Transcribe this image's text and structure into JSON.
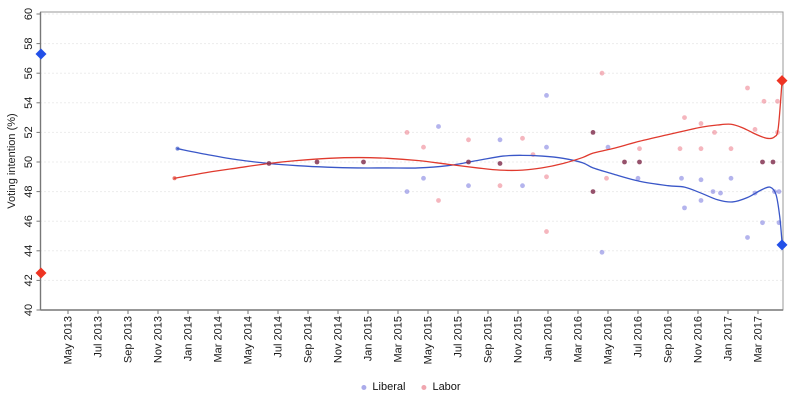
{
  "chart_data": {
    "type": "scatter",
    "title": "",
    "xlabel": "",
    "ylabel": "Voting intention (%)",
    "ylim": [
      40,
      60
    ],
    "y_ticks": [
      40,
      42,
      44,
      46,
      48,
      50,
      52,
      54,
      56,
      58,
      60
    ],
    "x_unit": "months since May 2013",
    "x_ticks": [
      {
        "m": 0,
        "label": "May 2013"
      },
      {
        "m": 2,
        "label": "Jul 2013"
      },
      {
        "m": 4,
        "label": "Sep 2013"
      },
      {
        "m": 6,
        "label": "Nov 2013"
      },
      {
        "m": 8,
        "label": "Jan 2014"
      },
      {
        "m": 10,
        "label": "Mar 2014"
      },
      {
        "m": 12,
        "label": "May 2014"
      },
      {
        "m": 14,
        "label": "Jul 2014"
      },
      {
        "m": 16,
        "label": "Sep 2014"
      },
      {
        "m": 18,
        "label": "Nov 2014"
      },
      {
        "m": 20,
        "label": "Jan 2015"
      },
      {
        "m": 22,
        "label": "Mar 2015"
      },
      {
        "m": 24,
        "label": "May 2015"
      },
      {
        "m": 26,
        "label": "Jul 2015"
      },
      {
        "m": 28,
        "label": "Sep 2015"
      },
      {
        "m": 30,
        "label": "Nov 2015"
      },
      {
        "m": 32,
        "label": "Jan 2016"
      },
      {
        "m": 34,
        "label": "Mar 2016"
      },
      {
        "m": 36,
        "label": "May 2016"
      },
      {
        "m": 38,
        "label": "Jul 2016"
      },
      {
        "m": 40,
        "label": "Sep 2016"
      },
      {
        "m": 42,
        "label": "Nov 2016"
      },
      {
        "m": 44,
        "label": "Jan 2017"
      },
      {
        "m": 46,
        "label": "Mar 2017"
      }
    ],
    "grid": "horizontal dotted gridlines at each y tick",
    "legend": {
      "position": "bottom-center",
      "entries": [
        {
          "label": "Liberal",
          "color": "rgba(88,88,214,0.5)"
        },
        {
          "label": "Labor",
          "color": "rgba(228,92,110,0.55)"
        }
      ]
    },
    "colors": {
      "liberal_point": "rgba(88,88,214,0.45)",
      "labor_point": "rgba(230,80,100,0.42)",
      "overlap_point": "rgba(132,52,82,0.85)",
      "liberal_line": "#3a57c8",
      "labor_line": "#e03a2e",
      "liberal_diamond": "#2250e8",
      "labor_diamond": "#ee3423",
      "grid": "#d9d9d9",
      "frame": "#9a9a9a",
      "axis": "#777777",
      "tick_text": "#1a1a1a"
    },
    "series": [
      {
        "name": "Liberal polls",
        "kind": "scatter",
        "points": [
          [
            22.6,
            48.0
          ],
          [
            23.7,
            48.9
          ],
          [
            24.7,
            52.4
          ],
          [
            26.7,
            48.4
          ],
          [
            28.8,
            51.5
          ],
          [
            30.3,
            48.4
          ],
          [
            31.9,
            51.0
          ],
          [
            31.9,
            54.5
          ],
          [
            35.6,
            43.9
          ],
          [
            36.0,
            51.0
          ],
          [
            38.0,
            48.9
          ],
          [
            40.9,
            48.9
          ],
          [
            41.1,
            46.9
          ],
          [
            42.2,
            48.8
          ],
          [
            42.2,
            47.4
          ],
          [
            43.0,
            48.0
          ],
          [
            43.5,
            47.9
          ],
          [
            44.2,
            48.9
          ],
          [
            45.3,
            44.9
          ],
          [
            45.8,
            47.9
          ],
          [
            46.3,
            45.9
          ],
          [
            47.1,
            48.0
          ],
          [
            47.4,
            48.0
          ],
          [
            47.4,
            45.9
          ]
        ]
      },
      {
        "name": "Labor polls",
        "kind": "scatter",
        "points": [
          [
            22.6,
            52.0
          ],
          [
            23.7,
            51.0
          ],
          [
            24.7,
            47.4
          ],
          [
            26.7,
            51.5
          ],
          [
            28.8,
            48.4
          ],
          [
            30.3,
            51.6
          ],
          [
            31.0,
            50.5
          ],
          [
            31.9,
            49.0
          ],
          [
            31.9,
            45.3
          ],
          [
            35.6,
            56.0
          ],
          [
            35.9,
            48.9
          ],
          [
            38.1,
            50.9
          ],
          [
            40.8,
            50.9
          ],
          [
            41.1,
            53.0
          ],
          [
            42.2,
            52.6
          ],
          [
            42.2,
            50.9
          ],
          [
            43.1,
            52.0
          ],
          [
            44.2,
            50.9
          ],
          [
            45.3,
            55.0
          ],
          [
            45.8,
            52.2
          ],
          [
            46.4,
            54.1
          ],
          [
            47.3,
            52.0
          ],
          [
            47.3,
            54.1
          ]
        ]
      },
      {
        "name": "Overlapping Liberal and Labor polls",
        "kind": "scatter-overlap",
        "points": [
          [
            13.4,
            49.9
          ],
          [
            16.6,
            50.0
          ],
          [
            19.7,
            50.0
          ],
          [
            26.7,
            50.0
          ],
          [
            28.8,
            49.9
          ],
          [
            35.0,
            52.0
          ],
          [
            35.0,
            48.0
          ],
          [
            37.1,
            50.0
          ],
          [
            38.1,
            50.0
          ],
          [
            46.3,
            50.0
          ],
          [
            47.0,
            50.0
          ]
        ]
      },
      {
        "name": "Liberal trend",
        "kind": "line",
        "party": "liberal",
        "points": [
          [
            7.3,
            50.9
          ],
          [
            9.3,
            50.5
          ],
          [
            11.3,
            50.15
          ],
          [
            13.4,
            49.9
          ],
          [
            15.3,
            49.75
          ],
          [
            17.3,
            49.65
          ],
          [
            19.3,
            49.6
          ],
          [
            21.3,
            49.6
          ],
          [
            23.3,
            49.6
          ],
          [
            25.3,
            49.75
          ],
          [
            27.3,
            50.1
          ],
          [
            29.0,
            50.4
          ],
          [
            30.3,
            50.45
          ],
          [
            31.6,
            50.4
          ],
          [
            33.0,
            50.25
          ],
          [
            34.3,
            49.95
          ],
          [
            35.0,
            49.6
          ],
          [
            36.3,
            49.2
          ],
          [
            38.1,
            48.7
          ],
          [
            40.0,
            48.4
          ],
          [
            41.1,
            48.3
          ],
          [
            42.2,
            47.9
          ],
          [
            43.3,
            47.45
          ],
          [
            44.3,
            47.3
          ],
          [
            45.3,
            47.6
          ],
          [
            46.2,
            48.1
          ],
          [
            46.8,
            48.3
          ],
          [
            47.2,
            47.8
          ],
          [
            47.45,
            46.3
          ],
          [
            47.6,
            44.6
          ]
        ]
      },
      {
        "name": "Labor trend",
        "kind": "line",
        "party": "labor",
        "points": [
          [
            7.1,
            48.9
          ],
          [
            9.3,
            49.3
          ],
          [
            11.3,
            49.6
          ],
          [
            13.4,
            49.9
          ],
          [
            15.3,
            50.1
          ],
          [
            17.4,
            50.25
          ],
          [
            19.4,
            50.3
          ],
          [
            21.3,
            50.25
          ],
          [
            23.3,
            50.1
          ],
          [
            25.3,
            49.85
          ],
          [
            27.3,
            49.6
          ],
          [
            28.8,
            49.45
          ],
          [
            30.3,
            49.45
          ],
          [
            31.6,
            49.6
          ],
          [
            33.0,
            49.9
          ],
          [
            34.3,
            50.3
          ],
          [
            35.0,
            50.6
          ],
          [
            36.3,
            50.9
          ],
          [
            38.1,
            51.4
          ],
          [
            40.0,
            51.85
          ],
          [
            41.1,
            52.1
          ],
          [
            42.2,
            52.35
          ],
          [
            43.3,
            52.5
          ],
          [
            44.2,
            52.55
          ],
          [
            45.0,
            52.3
          ],
          [
            45.8,
            51.9
          ],
          [
            46.6,
            51.6
          ],
          [
            47.1,
            51.7
          ],
          [
            47.35,
            52.3
          ],
          [
            47.6,
            55.4
          ]
        ]
      },
      {
        "name": "Endpoint diamonds",
        "kind": "diamond",
        "points": [
          {
            "m": -1.8,
            "v": 57.3,
            "party": "liberal"
          },
          {
            "m": -1.8,
            "v": 42.5,
            "party": "labor"
          },
          {
            "m": 47.6,
            "v": 55.5,
            "party": "labor"
          },
          {
            "m": 47.6,
            "v": 44.4,
            "party": "liberal"
          }
        ]
      }
    ]
  }
}
